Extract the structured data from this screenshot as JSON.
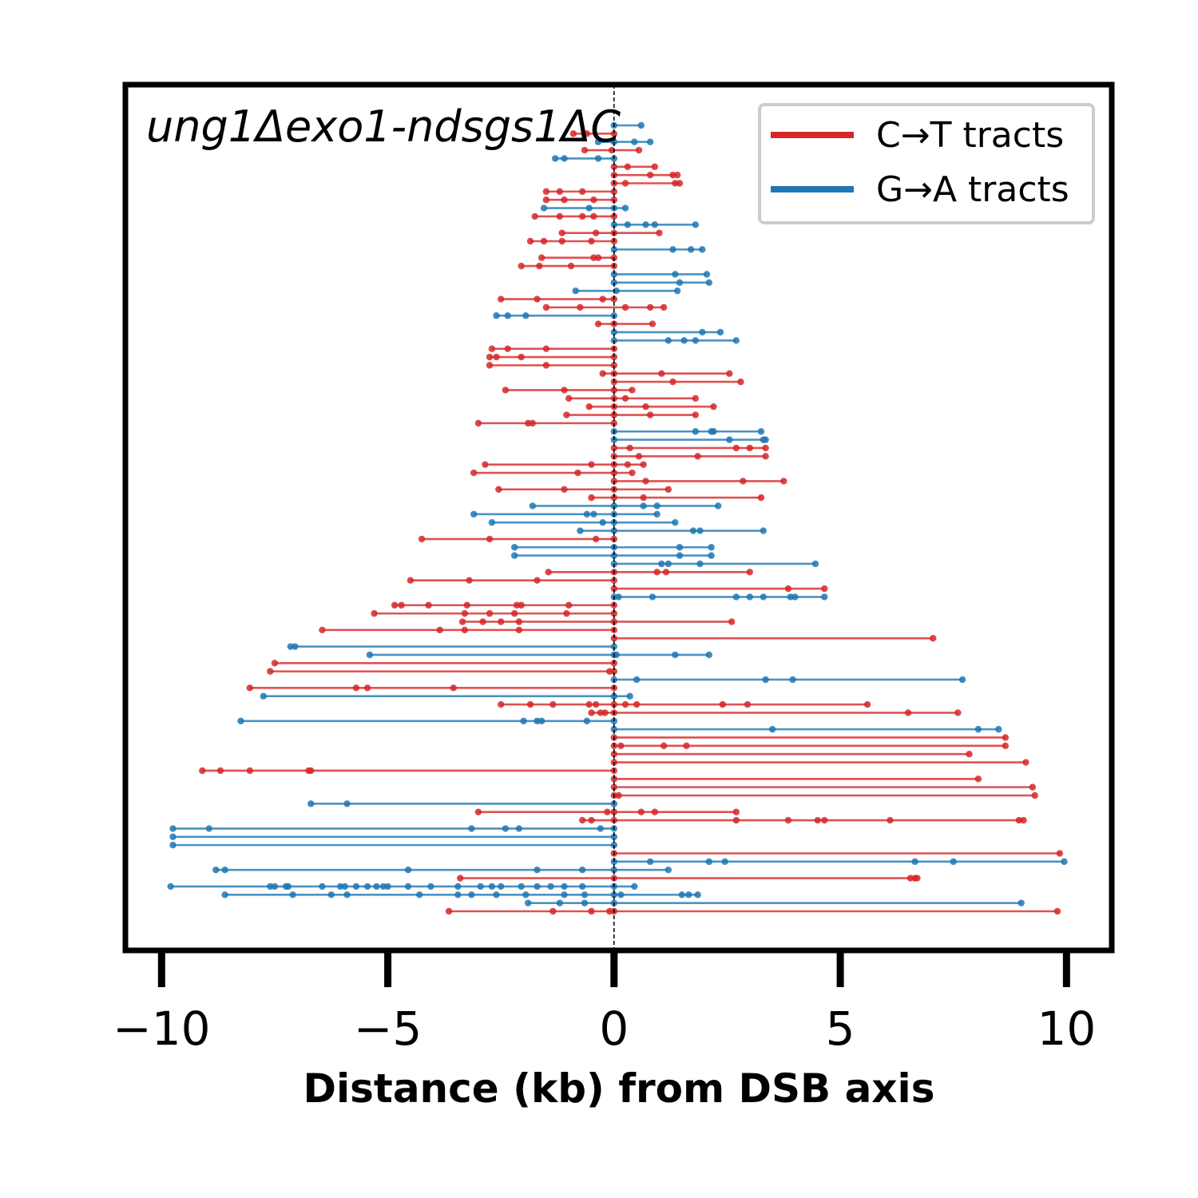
{
  "chart_data": {
    "type": "line",
    "title": "ung1Δexo1-ndsgs1ΔC",
    "xlabel": "Distance (kb) from DSB axis",
    "ylabel": "",
    "xlim": [
      -10.8,
      11.0
    ],
    "xticks": [
      -10,
      -5,
      0,
      5,
      10
    ],
    "xtick_labels": [
      "−10",
      "−5",
      "0",
      "5",
      "10"
    ],
    "grid": false,
    "legend_position": "top-right",
    "reference_line_x": 0,
    "colors": {
      "C>T": "#d62728",
      "G>A": "#1f77b4"
    },
    "legend": [
      {
        "key": "C>T",
        "label": "C→T tracts"
      },
      {
        "key": "G>A",
        "label": "G→A tracts"
      }
    ],
    "tracts": [
      {
        "type": "G>A",
        "points": [
          0.0,
          0.6
        ]
      },
      {
        "type": "C>T",
        "points": [
          -0.9,
          -0.6,
          0.0
        ]
      },
      {
        "type": "G>A",
        "points": [
          -0.35,
          0.0,
          0.45,
          0.8
        ]
      },
      {
        "type": "C>T",
        "points": [
          -0.65,
          -0.05,
          0.55
        ]
      },
      {
        "type": "G>A",
        "points": [
          -1.3,
          -1.1,
          -0.35,
          0.0
        ]
      },
      {
        "type": "C>T",
        "points": [
          0.0,
          0.3,
          0.9
        ]
      },
      {
        "type": "C>T",
        "points": [
          0.0,
          0.8,
          1.3,
          1.4
        ]
      },
      {
        "type": "C>T",
        "points": [
          0.0,
          0.25,
          1.35,
          1.45
        ]
      },
      {
        "type": "C>T",
        "points": [
          -1.5,
          -1.2,
          -0.7,
          0.0
        ]
      },
      {
        "type": "C>T",
        "points": [
          -1.5,
          -1.1,
          -0.45,
          0.0
        ]
      },
      {
        "type": "G>A",
        "points": [
          -1.55,
          -0.55,
          0.0,
          0.25
        ]
      },
      {
        "type": "C>T",
        "points": [
          -1.75,
          -1.2,
          -0.7,
          -0.45,
          0.0
        ]
      },
      {
        "type": "G>A",
        "points": [
          0.0,
          0.3,
          0.7,
          0.9,
          1.8
        ]
      },
      {
        "type": "C>T",
        "points": [
          -1.15,
          -0.4,
          0.0,
          1.0
        ]
      },
      {
        "type": "C>T",
        "points": [
          -1.85,
          -1.55,
          -1.15,
          -0.5,
          0.0
        ]
      },
      {
        "type": "G>A",
        "points": [
          0.0,
          1.3,
          1.7,
          1.95
        ]
      },
      {
        "type": "C>T",
        "points": [
          -1.6,
          -0.45,
          -0.35,
          0.0
        ]
      },
      {
        "type": "C>T",
        "points": [
          -2.05,
          -1.65,
          -0.95,
          0.0
        ]
      },
      {
        "type": "G>A",
        "points": [
          0.0,
          1.35,
          2.05
        ]
      },
      {
        "type": "G>A",
        "points": [
          0.0,
          1.45,
          2.1
        ]
      },
      {
        "type": "G>A",
        "points": [
          -0.85,
          0.05,
          1.4
        ]
      },
      {
        "type": "C>T",
        "points": [
          -2.5,
          -1.7,
          -0.25,
          0.0
        ]
      },
      {
        "type": "C>T",
        "points": [
          -1.5,
          -0.75,
          0.25,
          0.8,
          1.1
        ]
      },
      {
        "type": "G>A",
        "points": [
          -2.6,
          -2.35,
          -1.95,
          0.0
        ]
      },
      {
        "type": "C>T",
        "points": [
          -0.35,
          0.0,
          0.85
        ]
      },
      {
        "type": "G>A",
        "points": [
          0.0,
          1.95,
          2.35
        ]
      },
      {
        "type": "G>A",
        "points": [
          0.0,
          1.2,
          1.55,
          1.8,
          2.7
        ]
      },
      {
        "type": "C>T",
        "points": [
          -2.7,
          -2.35,
          -1.5,
          0.0
        ]
      },
      {
        "type": "C>T",
        "points": [
          -2.75,
          -2.6,
          -2.05,
          0.0
        ]
      },
      {
        "type": "C>T",
        "points": [
          -2.75,
          -1.5,
          0.0
        ]
      },
      {
        "type": "C>T",
        "points": [
          -0.25,
          0.0,
          1.05,
          2.55
        ]
      },
      {
        "type": "C>T",
        "points": [
          0.0,
          1.3,
          2.8
        ]
      },
      {
        "type": "C>T",
        "points": [
          -2.4,
          -1.1,
          0.0,
          0.4
        ]
      },
      {
        "type": "C>T",
        "points": [
          -1.0,
          0.0,
          0.25,
          1.8
        ]
      },
      {
        "type": "C>T",
        "points": [
          -0.55,
          0.0,
          0.7,
          2.2
        ]
      },
      {
        "type": "C>T",
        "points": [
          -1.05,
          0.0,
          0.8,
          1.8
        ]
      },
      {
        "type": "C>T",
        "points": [
          -3.0,
          -1.9,
          -1.8,
          0.0
        ]
      },
      {
        "type": "G>A",
        "points": [
          0.0,
          1.8,
          2.15,
          2.2,
          3.25
        ]
      },
      {
        "type": "G>A",
        "points": [
          0.0,
          2.55,
          3.3,
          3.35
        ]
      },
      {
        "type": "C>T",
        "points": [
          0.0,
          0.35,
          2.7,
          3.0,
          3.35
        ]
      },
      {
        "type": "C>T",
        "points": [
          0.0,
          0.55,
          1.85,
          3.35
        ]
      },
      {
        "type": "C>T",
        "points": [
          -2.85,
          -0.5,
          0.0,
          0.3,
          0.65
        ]
      },
      {
        "type": "C>T",
        "points": [
          -3.1,
          -0.8,
          0.0,
          0.4
        ]
      },
      {
        "type": "C>T",
        "points": [
          0.0,
          0.7,
          2.85,
          3.75
        ]
      },
      {
        "type": "C>T",
        "points": [
          -2.55,
          -1.1,
          0.0,
          1.2
        ]
      },
      {
        "type": "C>T",
        "points": [
          -0.5,
          0.0,
          0.65,
          3.25
        ]
      },
      {
        "type": "G>A",
        "points": [
          -1.8,
          0.0,
          0.65,
          0.95,
          2.3
        ]
      },
      {
        "type": "G>A",
        "points": [
          -3.1,
          -0.6,
          -0.45,
          0.0,
          0.95
        ]
      },
      {
        "type": "G>A",
        "points": [
          -2.7,
          -0.25,
          0.0,
          1.35
        ]
      },
      {
        "type": "G>A",
        "points": [
          -0.75,
          0.0,
          1.75,
          1.9,
          3.3
        ]
      },
      {
        "type": "C>T",
        "points": [
          -4.25,
          -2.75,
          -0.4,
          0.0
        ]
      },
      {
        "type": "G>A",
        "points": [
          -2.2,
          0.0,
          1.45,
          2.15
        ]
      },
      {
        "type": "G>A",
        "points": [
          -2.2,
          0.0,
          1.45,
          2.15
        ]
      },
      {
        "type": "G>A",
        "points": [
          0.0,
          1.05,
          1.2,
          1.9,
          4.45
        ]
      },
      {
        "type": "C>T",
        "points": [
          -1.45,
          0.0,
          0.95,
          1.15,
          3.0
        ]
      },
      {
        "type": "C>T",
        "points": [
          -4.5,
          -3.2,
          -1.7,
          0.0
        ]
      },
      {
        "type": "C>T",
        "points": [
          0.0,
          3.85,
          4.65
        ]
      },
      {
        "type": "G>A",
        "points": [
          0.0,
          0.1,
          0.85,
          2.7,
          3.0,
          3.3,
          3.9,
          4.0,
          4.65
        ]
      },
      {
        "type": "C>T",
        "points": [
          -4.85,
          -4.7,
          -4.1,
          -3.25,
          -2.15,
          -2.05,
          -1.0,
          0.0
        ]
      },
      {
        "type": "C>T",
        "points": [
          -5.3,
          -3.3,
          -2.75,
          -2.2,
          -1.05,
          0.0
        ]
      },
      {
        "type": "C>T",
        "points": [
          -3.35,
          -2.9,
          -2.5,
          -2.1,
          0.0,
          2.6
        ]
      },
      {
        "type": "C>T",
        "points": [
          -6.45,
          -3.85,
          -3.3,
          -2.1,
          0.0
        ]
      },
      {
        "type": "C>T",
        "points": [
          0.0,
          7.05
        ]
      },
      {
        "type": "G>A",
        "points": [
          -7.15,
          -7.05,
          0.0
        ]
      },
      {
        "type": "G>A",
        "points": [
          -5.4,
          0.0,
          0.05,
          1.35,
          2.1
        ]
      },
      {
        "type": "C>T",
        "points": [
          -7.5,
          0.0
        ]
      },
      {
        "type": "C>T",
        "points": [
          -7.6,
          -0.1,
          0.0
        ]
      },
      {
        "type": "G>A",
        "points": [
          0.0,
          0.5,
          3.35,
          3.95,
          7.7
        ]
      },
      {
        "type": "C>T",
        "points": [
          -8.05,
          -5.7,
          -5.45,
          -3.55,
          0.0
        ]
      },
      {
        "type": "G>A",
        "points": [
          -7.75,
          0.0,
          0.35
        ]
      },
      {
        "type": "C>T",
        "points": [
          -2.5,
          -1.85,
          -1.35,
          -0.55,
          -0.4,
          0.0,
          0.25,
          0.5,
          2.4,
          2.95,
          5.6
        ]
      },
      {
        "type": "C>T",
        "points": [
          -0.5,
          -0.3,
          -0.2,
          0.0,
          6.5,
          7.6
        ]
      },
      {
        "type": "G>A",
        "points": [
          -8.25,
          -2.0,
          -1.7,
          -1.6,
          -0.6,
          0.0
        ]
      },
      {
        "type": "G>A",
        "points": [
          0.0,
          3.5,
          8.05,
          8.5
        ]
      },
      {
        "type": "C>T",
        "points": [
          0.0,
          8.65
        ]
      },
      {
        "type": "C>T",
        "points": [
          0.0,
          0.15,
          1.1,
          1.6,
          8.65
        ]
      },
      {
        "type": "C>T",
        "points": [
          0.0,
          7.85
        ]
      },
      {
        "type": "C>T",
        "points": [
          0.0,
          9.1
        ]
      },
      {
        "type": "C>T",
        "points": [
          -9.1,
          -8.7,
          -8.05,
          -6.75,
          -6.7,
          0.0
        ]
      },
      {
        "type": "C>T",
        "points": [
          0.0,
          8.05
        ]
      },
      {
        "type": "C>T",
        "points": [
          0.0,
          9.25
        ]
      },
      {
        "type": "C>T",
        "points": [
          0.0,
          0.1,
          9.3
        ]
      },
      {
        "type": "G>A",
        "points": [
          -6.7,
          -5.9,
          0.0
        ]
      },
      {
        "type": "C>T",
        "points": [
          -3.0,
          -0.15,
          0.0,
          0.6,
          0.9,
          2.7
        ]
      },
      {
        "type": "C>T",
        "points": [
          -0.7,
          -0.5,
          0.0,
          2.7,
          3.85,
          4.5,
          4.65,
          6.1,
          8.95,
          9.05
        ]
      },
      {
        "type": "G>A",
        "points": [
          -9.75,
          -8.95,
          -3.15,
          -2.4,
          -2.1,
          -0.3,
          0.0
        ]
      },
      {
        "type": "G>A",
        "points": [
          -9.75,
          0.0
        ]
      },
      {
        "type": "G>A",
        "points": [
          -9.75,
          0.0
        ]
      },
      {
        "type": "C>T",
        "points": [
          0.0,
          9.85
        ]
      },
      {
        "type": "G>A",
        "points": [
          0.0,
          0.8,
          2.1,
          2.45,
          6.65,
          7.5,
          9.95
        ]
      },
      {
        "type": "G>A",
        "points": [
          -8.8,
          -8.6,
          -4.55,
          -1.7,
          -0.7,
          0.0,
          1.2
        ]
      },
      {
        "type": "C>T",
        "points": [
          -3.4,
          0.0,
          6.55,
          6.65,
          6.7
        ]
      },
      {
        "type": "G>A",
        "points": [
          -9.8,
          -7.6,
          -7.5,
          -7.25,
          -7.2,
          -6.45,
          -6.05,
          -5.95,
          -5.7,
          -5.45,
          -5.25,
          -5.1,
          -5.0,
          -4.55,
          -4.05,
          -3.45,
          -2.95,
          -2.7,
          -2.5,
          -2.05,
          -1.7,
          -1.4,
          -1.1,
          -0.7,
          0.0,
          0.45
        ]
      },
      {
        "type": "G>A",
        "points": [
          -8.6,
          -7.1,
          -6.25,
          -5.9,
          -4.3,
          -3.45,
          -3.15,
          -2.6,
          -1.95,
          -1.1,
          -0.65,
          0.0,
          0.15,
          1.5,
          1.65,
          1.85
        ]
      },
      {
        "type": "G>A",
        "points": [
          -1.9,
          -1.2,
          -0.65,
          0.0,
          9.0
        ]
      },
      {
        "type": "C>T",
        "points": [
          -3.65,
          -1.35,
          -0.5,
          -0.1,
          0.0,
          9.8
        ]
      }
    ]
  }
}
